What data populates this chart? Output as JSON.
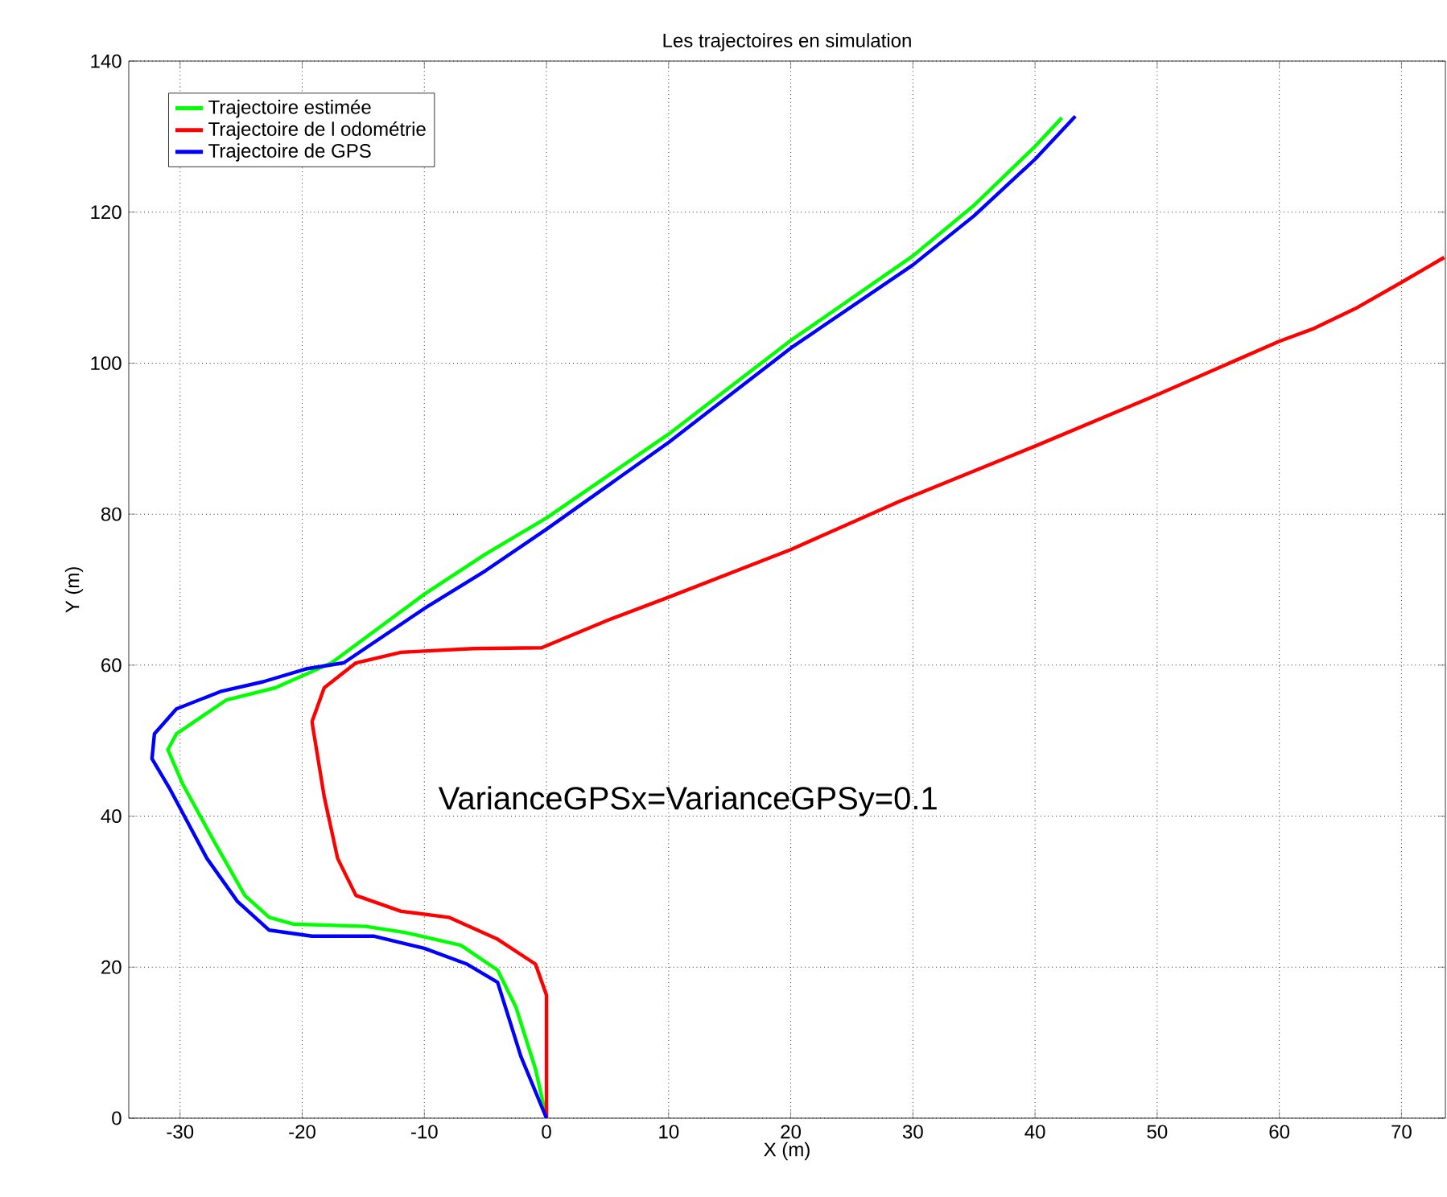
{
  "chart_data": {
    "type": "line",
    "title": "Les trajectoires en simulation",
    "xlabel": "X (m)",
    "ylabel": "Y (m)",
    "annotations": [
      "VarianceGPSx=VarianceGPSy=0.1"
    ],
    "xlim": [
      -34.2,
      73.6
    ],
    "ylim": [
      0,
      140
    ],
    "xticks": [
      -30,
      -20,
      -10,
      0,
      10,
      20,
      30,
      40,
      50,
      60,
      70
    ],
    "yticks": [
      0,
      20,
      40,
      60,
      80,
      100,
      120,
      140
    ],
    "grid": true,
    "legend": "top left",
    "line_style": "solid",
    "marker": "none",
    "series": [
      {
        "name": "Trajectoire estimée",
        "color": "#00ff00",
        "x": [
          0,
          -0.9,
          -2.5,
          -4,
          -7,
          -11.6,
          -14.8,
          -20.7,
          -22.7,
          -24.7,
          -27.3,
          -29.8,
          -31,
          -30.3,
          -26.2,
          -22.2,
          -17.6,
          -10,
          -5,
          0,
          10,
          20,
          30,
          35,
          40,
          42.2
        ],
        "values": [
          0,
          6.5,
          14.7,
          19.6,
          22.9,
          24.6,
          25.4,
          25.7,
          26.6,
          29.5,
          36.9,
          44.3,
          48.8,
          50.9,
          55.4,
          57,
          60.3,
          69.4,
          74.7,
          79.5,
          90.6,
          103,
          114.2,
          120.9,
          128.7,
          132.5
        ]
      },
      {
        "name": "Trajectoire de l odométrie",
        "color": "#ff0000",
        "x": [
          0,
          0,
          -0.9,
          -4,
          -8,
          -11.9,
          -15.6,
          -17.1,
          -18.2,
          -19.2,
          -18.2,
          -15.6,
          -11.9,
          -6,
          -0.4,
          5.1,
          10,
          20,
          28.9,
          40,
          50,
          60,
          62.7,
          66.2,
          70,
          73.5
        ],
        "values": [
          0,
          16.3,
          20.4,
          23.7,
          26.6,
          27.4,
          29.5,
          34.4,
          42.6,
          52.5,
          57,
          60.3,
          61.7,
          62.2,
          62.3,
          66,
          69,
          75.3,
          81.7,
          89,
          95.8,
          102.9,
          104.5,
          107.2,
          110.7,
          114
        ]
      },
      {
        "name": "Trajectoire de GPS",
        "color": "#0000ff",
        "x": [
          0,
          -2.1,
          -4,
          -6.5,
          -10,
          -14.1,
          -19.2,
          -22.7,
          -25.3,
          -27.8,
          -30.8,
          -32.3,
          -32.1,
          -30.3,
          -26.7,
          -23.2,
          -19.7,
          -16.6,
          -10,
          -5,
          0,
          10,
          20,
          30,
          35,
          40,
          43.3
        ],
        "values": [
          0,
          8.2,
          18,
          20.4,
          22.5,
          24.1,
          24.1,
          24.9,
          28.7,
          34.4,
          43.5,
          47.6,
          50.9,
          54.2,
          56.5,
          57.8,
          59.5,
          60.3,
          67.5,
          72.5,
          78,
          89.5,
          102,
          113,
          119.5,
          127,
          132.7
        ]
      }
    ]
  }
}
